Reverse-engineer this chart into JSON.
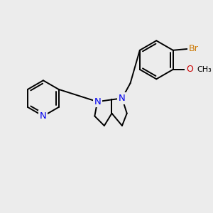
{
  "bg_color": "#ececec",
  "bond_color": "#000000",
  "bond_width": 1.4,
  "atom_colors": {
    "N": "#0000ee",
    "Br": "#cc7700",
    "O": "#cc0000",
    "C": "#000000"
  },
  "font_size": 8.5,
  "figsize": [
    3.0,
    3.0
  ],
  "dpi": 100
}
